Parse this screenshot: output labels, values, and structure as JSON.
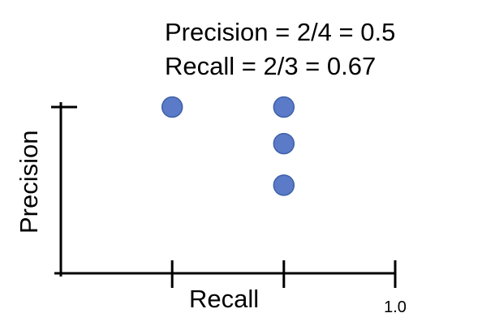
{
  "chart_data": {
    "type": "scatter",
    "title": "",
    "xlabel": "Recall",
    "ylabel": "Precision",
    "annotations": [
      "Precision = 2/4 = 0.5",
      "Recall = 2/3 = 0.67"
    ],
    "xlim": [
      0,
      1.0
    ],
    "ylim": [
      0,
      1.0
    ],
    "x_ticks": [
      0.333,
      0.667,
      1.0
    ],
    "x_tick_labels": [
      "",
      "",
      "1.0"
    ],
    "y_ticks": [
      1.0
    ],
    "grid": false,
    "point_color": "#5b7bc8",
    "point_edge_color": "#3f5fa8",
    "axis_color": "#000000",
    "points": [
      {
        "x": 0.333,
        "y": 1.0
      },
      {
        "x": 0.667,
        "y": 1.0
      },
      {
        "x": 0.667,
        "y": 0.78
      },
      {
        "x": 0.667,
        "y": 0.53
      }
    ]
  }
}
